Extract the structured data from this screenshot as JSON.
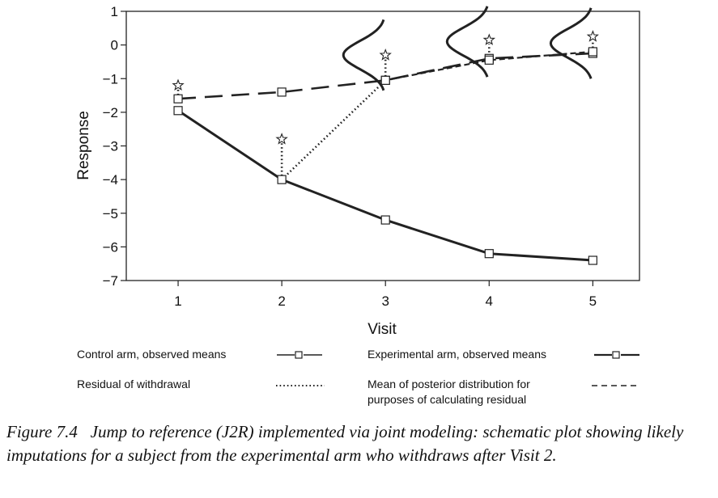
{
  "chart_data": {
    "type": "line",
    "ylabel": "Response",
    "xlabel": "Visit",
    "x": [
      1,
      2,
      3,
      4,
      5
    ],
    "xlim": [
      0.5,
      5.45
    ],
    "ylim": [
      -7,
      1
    ],
    "yticks": [
      1,
      0,
      -1,
      -2,
      -3,
      -4,
      -5,
      -6,
      -7
    ],
    "xticks": [
      1,
      2,
      3,
      4,
      5
    ],
    "series": [
      {
        "name": "Control arm, observed means",
        "style": "long-dash",
        "marker": "square",
        "values": [
          -1.6,
          -1.4,
          -1.05,
          -0.4,
          -0.25
        ]
      },
      {
        "name": "Experimental arm, observed means",
        "style": "solid-thick",
        "marker": "square",
        "values": [
          -1.95,
          -4.0,
          -5.2,
          -6.2,
          -6.4
        ]
      },
      {
        "name": "Mean of posterior distribution for purposes of calculating residual",
        "style": "short-dash",
        "marker": "square",
        "x": [
          3,
          4,
          5
        ],
        "values": [
          -1.05,
          -0.45,
          -0.2
        ]
      },
      {
        "name": "Residual of withdrawal",
        "style": "dotted",
        "marker": "none",
        "x": [
          2,
          3
        ],
        "values": [
          -4.0,
          -1.05
        ]
      }
    ],
    "imputations": [
      {
        "x": 1,
        "star": -1.2,
        "base": -1.6
      },
      {
        "x": 2,
        "star": -2.8,
        "base": -4.0
      },
      {
        "x": 3,
        "star": -0.3,
        "base": -1.05
      },
      {
        "x": 4,
        "star": 0.15,
        "base": -0.45
      },
      {
        "x": 5,
        "star": 0.25,
        "base": -0.2
      }
    ],
    "densities": [
      {
        "x": 3,
        "mean": -0.3
      },
      {
        "x": 4,
        "mean": 0.1
      },
      {
        "x": 5,
        "mean": 0.05
      }
    ]
  },
  "legend": {
    "control": "Control arm, observed means",
    "experimental": "Experimental arm, observed means",
    "residual": "Residual of withdrawal",
    "posterior_line1": "Mean of posterior distribution for",
    "posterior_line2": "purposes of calculating residual"
  },
  "caption": {
    "label": "Figure 7.4",
    "text": "Jump to reference (J2R) implemented via joint modeling: schematic plot showing likely imputations for a subject from the experimental arm who withdraws after Visit 2."
  }
}
